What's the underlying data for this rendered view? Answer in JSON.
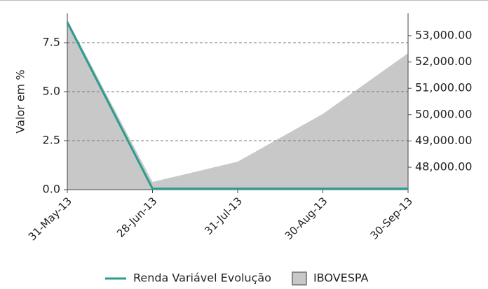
{
  "chart_data": {
    "type": "line-area",
    "y_label": "Valor em %",
    "categories": [
      "31-May-13",
      "28-Jun-13",
      "31-Jul-13",
      "30-Aug-13",
      "30-Sep-13"
    ],
    "series": [
      {
        "name": "Renda Variável Evolução",
        "color": "#2a9d8f",
        "values": [
          8.54,
          0.05,
          0.05,
          0.05,
          0.05
        ]
      },
      {
        "name": "IBOVESPA",
        "color": "#c8c8c8",
        "axis": "y2",
        "values": [
          53612,
          47441,
          48213,
          50027,
          52335
        ]
      }
    ],
    "ylim": [
      0,
      9
    ],
    "yticks": [
      {
        "value": 0,
        "label": "0.0"
      },
      2.5,
      {
        "value": 5,
        "label": "5.0"
      },
      7.5
    ],
    "y2lim": [
      47150,
      53850
    ],
    "y2ticks": [
      {
        "value": 48000,
        "label": "48,000.00"
      },
      {
        "value": 49000,
        "label": "49,000.00"
      },
      {
        "value": 50000,
        "label": "50,000.00"
      },
      {
        "value": 51000,
        "label": "51,000.00"
      },
      {
        "value": 52000,
        "label": "52,000.00"
      },
      {
        "value": 53000,
        "label": "53,000.00"
      }
    ],
    "grid": true
  }
}
